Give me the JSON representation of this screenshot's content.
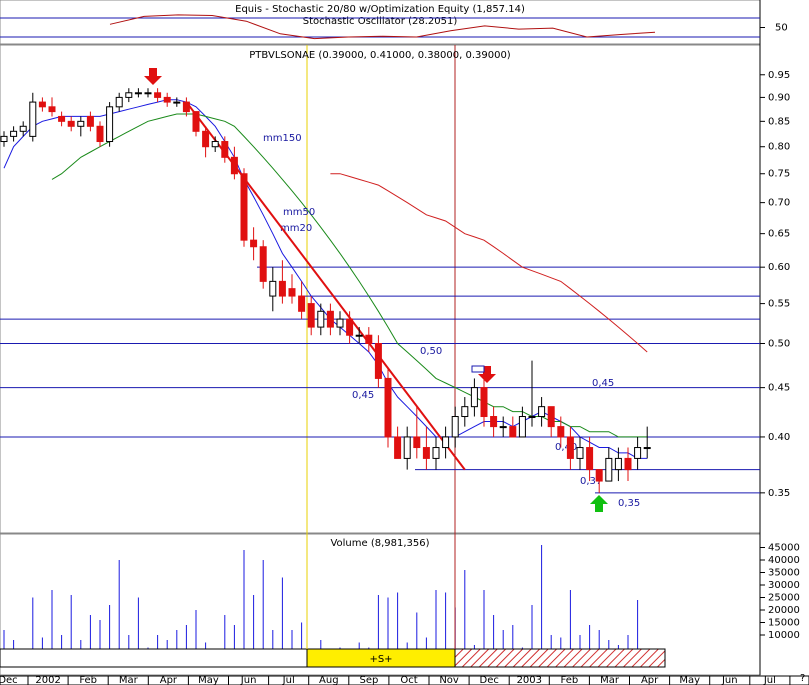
{
  "chart_data": {
    "type": "candlestick",
    "title": "PTBVLSONAE (0.39000, 0.41000, 0.38000, 0.39000)",
    "yscale": "log",
    "ylim": [
      0.318,
      1.02
    ],
    "yticks": [
      0.35,
      {
        "value": 0.4,
        "label": "0.40"
      },
      0.45,
      {
        "value": 0.5,
        "label": "0.50"
      },
      0.55,
      {
        "value": 0.6,
        "label": "0.60"
      },
      0.65,
      {
        "value": 0.7,
        "label": "0.70"
      },
      0.75,
      {
        "value": 0.8,
        "label": "0.80"
      },
      0.85,
      {
        "value": 0.9,
        "label": "0.90"
      },
      0.95
    ],
    "up_color": "#ffffff",
    "down_color": "#e01010",
    "open": [
      0.81,
      0.82,
      0.83,
      0.82,
      0.89,
      0.88,
      0.86,
      0.85,
      0.84,
      0.86,
      0.84,
      0.81,
      0.88,
      0.9,
      0.91,
      0.91,
      0.91,
      0.9,
      0.89,
      0.89,
      0.87,
      0.83,
      0.8,
      0.81,
      0.78,
      0.75,
      0.64,
      0.63,
      0.56,
      0.58,
      0.57,
      0.56,
      0.55,
      0.52,
      0.54,
      0.52,
      0.53,
      0.51,
      0.51,
      0.5,
      0.46,
      0.4,
      0.38,
      0.4,
      0.39,
      0.38,
      0.39,
      0.4,
      0.42,
      0.43,
      0.45,
      0.42,
      0.41,
      0.41,
      0.4,
      0.42,
      0.42,
      0.43,
      0.41,
      0.4,
      0.38,
      0.39,
      0.37,
      0.36,
      0.37,
      0.38,
      0.38,
      0.39
    ],
    "high": [
      0.83,
      0.84,
      0.85,
      0.91,
      0.9,
      0.9,
      0.87,
      0.86,
      0.86,
      0.87,
      0.85,
      0.89,
      0.91,
      0.92,
      0.92,
      0.92,
      0.92,
      0.91,
      0.9,
      0.9,
      0.87,
      0.84,
      0.82,
      0.82,
      0.8,
      0.76,
      0.66,
      0.64,
      0.6,
      0.61,
      0.59,
      0.58,
      0.56,
      0.55,
      0.55,
      0.54,
      0.54,
      0.52,
      0.52,
      0.51,
      0.47,
      0.41,
      0.41,
      0.43,
      0.41,
      0.4,
      0.41,
      0.43,
      0.44,
      0.46,
      0.46,
      0.43,
      0.42,
      0.42,
      0.43,
      0.48,
      0.44,
      0.43,
      0.42,
      0.41,
      0.4,
      0.4,
      0.37,
      0.39,
      0.39,
      0.39,
      0.4,
      0.41
    ],
    "low": [
      0.8,
      0.81,
      0.82,
      0.81,
      0.87,
      0.86,
      0.84,
      0.83,
      0.82,
      0.83,
      0.8,
      0.8,
      0.87,
      0.89,
      0.9,
      0.9,
      0.89,
      0.88,
      0.88,
      0.86,
      0.82,
      0.78,
      0.79,
      0.77,
      0.74,
      0.63,
      0.61,
      0.57,
      0.54,
      0.55,
      0.55,
      0.53,
      0.51,
      0.51,
      0.51,
      0.51,
      0.5,
      0.5,
      0.49,
      0.45,
      0.39,
      0.38,
      0.37,
      0.38,
      0.37,
      0.37,
      0.38,
      0.39,
      0.41,
      0.42,
      0.41,
      0.4,
      0.4,
      0.4,
      0.4,
      0.41,
      0.41,
      0.4,
      0.39,
      0.37,
      0.37,
      0.36,
      0.35,
      0.36,
      0.36,
      0.36,
      0.37,
      0.38
    ],
    "close": [
      0.82,
      0.83,
      0.84,
      0.89,
      0.88,
      0.87,
      0.85,
      0.84,
      0.85,
      0.84,
      0.81,
      0.88,
      0.9,
      0.91,
      0.91,
      0.91,
      0.9,
      0.89,
      0.89,
      0.87,
      0.83,
      0.8,
      0.81,
      0.78,
      0.75,
      0.64,
      0.63,
      0.58,
      0.58,
      0.56,
      0.56,
      0.54,
      0.52,
      0.54,
      0.52,
      0.53,
      0.51,
      0.51,
      0.5,
      0.46,
      0.4,
      0.38,
      0.4,
      0.39,
      0.38,
      0.39,
      0.4,
      0.42,
      0.43,
      0.45,
      0.42,
      0.41,
      0.41,
      0.4,
      0.42,
      0.42,
      0.43,
      0.41,
      0.4,
      0.38,
      0.39,
      0.37,
      0.36,
      0.38,
      0.38,
      0.37,
      0.39,
      0.39
    ],
    "series": [
      {
        "name": "mm20",
        "color": "#1a1ae0",
        "values": [
          0.76,
          0.8,
          0.82,
          0.84,
          0.85,
          0.855,
          0.86,
          0.86,
          0.86,
          0.86,
          0.86,
          0.865,
          0.87,
          0.875,
          0.88,
          0.885,
          0.89,
          0.895,
          0.895,
          0.89,
          0.88,
          0.86,
          0.84,
          0.81,
          0.78,
          0.74,
          0.71,
          0.68,
          0.65,
          0.62,
          0.6,
          0.58,
          0.56,
          0.545,
          0.53,
          0.52,
          0.51,
          0.5,
          0.49,
          0.475,
          0.455,
          0.44,
          0.43,
          0.42,
          0.41,
          0.4,
          0.4,
          0.4,
          0.405,
          0.41,
          0.415,
          0.415,
          0.415,
          0.41,
          0.415,
          0.42,
          0.425,
          0.42,
          0.415,
          0.41,
          0.4,
          0.395,
          0.39,
          0.39,
          0.385,
          0.385,
          0.38,
          0.38
        ]
      },
      {
        "name": "mm50",
        "color": "#1a8a1a",
        "values": [
          null,
          null,
          null,
          null,
          null,
          0.74,
          0.75,
          0.765,
          0.78,
          0.79,
          0.8,
          0.81,
          0.82,
          0.83,
          0.84,
          0.85,
          0.855,
          0.86,
          0.865,
          0.865,
          0.865,
          0.86,
          0.855,
          0.85,
          0.84,
          0.82,
          0.8,
          0.78,
          0.76,
          0.74,
          0.72,
          0.7,
          0.68,
          0.66,
          0.64,
          0.62,
          0.6,
          0.58,
          0.56,
          0.54,
          0.52,
          0.5,
          0.49,
          0.48,
          0.47,
          0.46,
          0.455,
          0.45,
          0.445,
          0.44,
          0.435,
          0.43,
          0.43,
          0.425,
          0.425,
          0.42,
          0.42,
          0.415,
          0.415,
          0.41,
          0.41,
          0.405,
          0.405,
          0.405,
          0.4,
          0.4,
          0.4,
          0.4
        ]
      },
      {
        "name": "mm150",
        "color": "#d02020",
        "values": [
          null,
          null,
          null,
          null,
          null,
          null,
          null,
          null,
          null,
          null,
          null,
          null,
          null,
          null,
          null,
          null,
          null,
          null,
          null,
          null,
          null,
          null,
          null,
          null,
          null,
          null,
          null,
          null,
          null,
          null,
          null,
          null,
          null,
          null,
          0.75,
          0.75,
          0.745,
          0.74,
          0.735,
          0.73,
          0.72,
          0.71,
          0.7,
          0.69,
          0.68,
          0.675,
          0.67,
          0.66,
          0.65,
          0.645,
          0.64,
          0.63,
          0.62,
          0.61,
          0.6,
          0.595,
          0.59,
          0.585,
          0.58,
          0.57,
          0.56,
          0.55,
          0.54,
          0.53,
          0.52,
          0.51,
          0.5,
          0.49
        ]
      }
    ],
    "levels": [
      0.6,
      0.56,
      0.53,
      0.5,
      0.45,
      0.4,
      0.37,
      0.35
    ],
    "level_color": "#1a1ab0",
    "level_labels": [
      "0,50",
      "0,45",
      "0,45",
      "0,40",
      "0,37",
      "0,35"
    ],
    "trendline": {
      "color": "#e01010",
      "from": [
        19,
        0.89
      ],
      "to": [
        48,
        0.37
      ]
    },
    "months": [
      "Dec",
      "2002",
      "Feb",
      "Mar",
      "Apr",
      "May",
      "Jun",
      "Jul",
      "Aug",
      "Sep",
      "Oct",
      "Nov",
      "Dec",
      "2003",
      "Feb",
      "Mar",
      "Apr",
      "May",
      "Jun",
      "Jul"
    ],
    "signal_label": "+S+",
    "volume": {
      "title": "Volume (8,981,356)",
      "color": "#1a1ae0",
      "ylim": [
        0,
        50000
      ],
      "yticks": [
        10000,
        15000,
        20000,
        25000,
        30000,
        35000,
        40000,
        45000
      ],
      "values": [
        12000,
        8000,
        3000,
        25000,
        9000,
        28000,
        10000,
        26000,
        8000,
        18000,
        16000,
        22000,
        40000,
        10000,
        25000,
        5000,
        10000,
        8000,
        12000,
        14000,
        20000,
        7000,
        4000,
        18000,
        14000,
        44000,
        26000,
        40000,
        12000,
        33000,
        12000,
        15000,
        3000,
        8000,
        4000,
        5000,
        4000,
        7000,
        5000,
        26000,
        25000,
        27000,
        7000,
        19000,
        9000,
        28000,
        27000,
        21000,
        36000,
        6000,
        28000,
        18000,
        12000,
        14000,
        5000,
        22000,
        46000,
        10000,
        9000,
        28000,
        10000,
        14000,
        12000,
        8000,
        6000,
        10000,
        24000,
        4000
      ]
    },
    "stochastic": {
      "title": "Equis - Stochastic 20/80 w/Optimization Equity (1,857.14)",
      "subtitle": "Stochastic Oscillator (28.2051)",
      "color": "#b01010",
      "ylim": [
        0,
        100
      ],
      "yticks": [
        50
      ],
      "levels": [
        20,
        80
      ],
      "values": [
        60,
        85,
        90,
        88,
        70,
        30,
        15,
        20,
        22,
        20,
        40,
        55,
        45,
        48,
        20,
        28,
        35
      ]
    }
  }
}
